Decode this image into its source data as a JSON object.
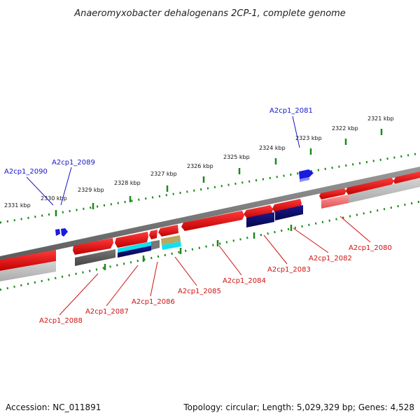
{
  "title": "Anaeromyxobacter dehalogenans 2CP-1, complete genome",
  "footer": {
    "accession": "Accession: NC_011891",
    "summary": "Topology: circular; Length: 5,029,329 bp; Genes: 4,528"
  },
  "ticks": [
    "2321 kbp",
    "2322 kbp",
    "2323 kbp",
    "2324 kbp",
    "2325 kbp",
    "2326 kbp",
    "2327 kbp",
    "2328 kbp",
    "2329 kbp",
    "2330 kbp",
    "2331 kbp"
  ],
  "genes_top": [
    "A2cp1_2081",
    "A2cp1_2089",
    "A2cp1_2090"
  ],
  "genes_bottom": [
    "A2cp1_2080",
    "A2cp1_2082",
    "A2cp1_2083",
    "A2cp1_2084",
    "A2cp1_2085",
    "A2cp1_2086",
    "A2cp1_2087",
    "A2cp1_2088"
  ],
  "colors": {
    "forward_cds": "#e01010",
    "reverse_cds": "#e01010",
    "top_strand_feature": "#1a1ae0",
    "backbone": "#888888",
    "cog_dark": "#555555",
    "cog_navy": "#0a0a78",
    "cog_cyan": "#10e0f0",
    "cog_olive": "#b8a860",
    "gc_tick": "#1a8a1a"
  }
}
